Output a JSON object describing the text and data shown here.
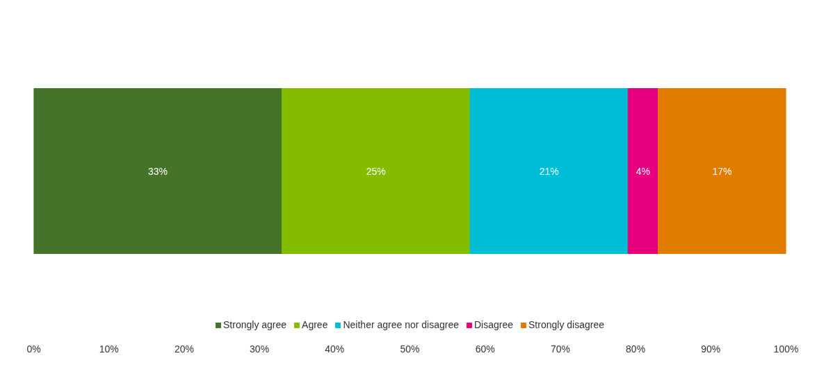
{
  "chart_data": {
    "type": "bar",
    "orientation": "horizontal",
    "stacked": true,
    "categories": [
      null
    ],
    "series": [
      {
        "name": "Strongly agree",
        "color": "#46732a",
        "values": [
          33
        ],
        "value_labels": [
          "33%"
        ]
      },
      {
        "name": "Agree",
        "color": "#84bd00",
        "values": [
          25
        ],
        "value_labels": [
          "25%"
        ]
      },
      {
        "name": "Neither agree nor disagree",
        "color": "#00bed6",
        "values": [
          21
        ],
        "value_labels": [
          "21%"
        ]
      },
      {
        "name": "Disagree",
        "color": "#e6007e",
        "values": [
          4
        ],
        "value_labels": [
          "4%"
        ]
      },
      {
        "name": "Strongly disagree",
        "color": "#e07b00",
        "values": [
          17
        ],
        "value_labels": [
          "17%"
        ]
      }
    ],
    "xlim": [
      0,
      100
    ],
    "xticks": [
      {
        "value": 0,
        "label": "0%"
      },
      {
        "value": 10,
        "label": "10%"
      },
      {
        "value": 20,
        "label": "20%"
      },
      {
        "value": 30,
        "label": "30%"
      },
      {
        "value": 40,
        "label": "40%"
      },
      {
        "value": 50,
        "label": "50%"
      },
      {
        "value": 60,
        "label": "60%"
      },
      {
        "value": 70,
        "label": "70%"
      },
      {
        "value": 80,
        "label": "80%"
      },
      {
        "value": 90,
        "label": "90%"
      },
      {
        "value": 100,
        "label": "100%"
      }
    ],
    "tick_labels": "x",
    "legend": "bottom",
    "grid": false
  }
}
